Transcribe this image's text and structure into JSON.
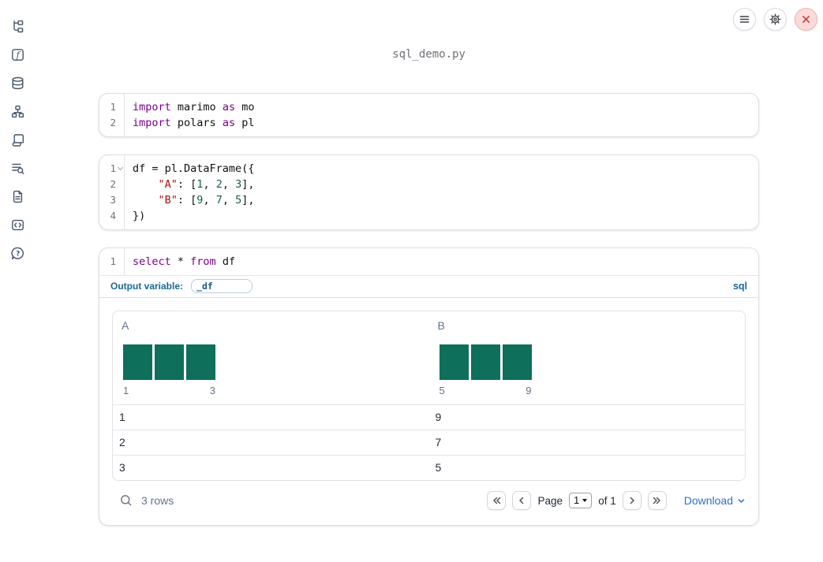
{
  "window": {
    "title": "sql_demo.py"
  },
  "toolbar": {
    "buttons": [
      {
        "name": "menu",
        "icon": "hamburger-menu-icon"
      },
      {
        "name": "settings",
        "icon": "gear-icon"
      },
      {
        "name": "close",
        "icon": "close-x-icon"
      }
    ]
  },
  "sidebar": {
    "items": [
      {
        "name": "file-explorer",
        "icon": "file-tree-icon"
      },
      {
        "name": "functions",
        "icon": "function-icon"
      },
      {
        "name": "datasources",
        "icon": "database-icon"
      },
      {
        "name": "dependency-graph",
        "icon": "hierarchy-icon"
      },
      {
        "name": "scratchpad",
        "icon": "scroll-icon"
      },
      {
        "name": "logs",
        "icon": "list-search-icon"
      },
      {
        "name": "documentation",
        "icon": "document-icon"
      },
      {
        "name": "snippets",
        "icon": "code-box-icon"
      },
      {
        "name": "help",
        "icon": "help-bubble-icon"
      }
    ]
  },
  "cells": [
    {
      "kind": "python",
      "lines": [
        {
          "n": "1",
          "seg": [
            [
              "kw",
              "import"
            ],
            [
              "pl",
              " marimo "
            ],
            [
              "kw",
              "as"
            ],
            [
              "pl",
              " mo"
            ]
          ]
        },
        {
          "n": "2",
          "seg": [
            [
              "kw",
              "import"
            ],
            [
              "pl",
              " polars "
            ],
            [
              "kw",
              "as"
            ],
            [
              "pl",
              " pl"
            ]
          ]
        }
      ]
    },
    {
      "kind": "python",
      "lines": [
        {
          "n": "1",
          "fold": true,
          "seg": [
            [
              "pl",
              "df = pl.DataFrame({"
            ]
          ]
        },
        {
          "n": "2",
          "seg": [
            [
              "pl",
              "    "
            ],
            [
              "str",
              "\"A\""
            ],
            [
              "pl",
              ": ["
            ],
            [
              "num",
              "1"
            ],
            [
              "pl",
              ", "
            ],
            [
              "num",
              "2"
            ],
            [
              "pl",
              ", "
            ],
            [
              "num",
              "3"
            ],
            [
              "pl",
              "],"
            ]
          ]
        },
        {
          "n": "3",
          "seg": [
            [
              "pl",
              "    "
            ],
            [
              "str",
              "\"B\""
            ],
            [
              "pl",
              ": ["
            ],
            [
              "num",
              "9"
            ],
            [
              "pl",
              ", "
            ],
            [
              "num",
              "7"
            ],
            [
              "pl",
              ", "
            ],
            [
              "num",
              "5"
            ],
            [
              "pl",
              "],"
            ]
          ]
        },
        {
          "n": "4",
          "seg": [
            [
              "pl",
              "})"
            ]
          ]
        }
      ]
    },
    {
      "kind": "sql",
      "lines": [
        {
          "n": "1",
          "seg": [
            [
              "kw",
              "select"
            ],
            [
              "pl",
              " * "
            ],
            [
              "kw",
              "from"
            ],
            [
              "pl",
              " df"
            ]
          ]
        }
      ],
      "output_variable_label": "Output variable:",
      "output_variable_value": "_df",
      "language_badge": "sql"
    }
  ],
  "output_table": {
    "columns": [
      {
        "name": "A",
        "hist": {
          "bars": [
            1,
            1,
            1
          ],
          "min": "1",
          "max": "3"
        }
      },
      {
        "name": "B",
        "hist": {
          "bars": [
            1,
            1,
            1
          ],
          "min": "5",
          "max": "9"
        }
      }
    ],
    "rows": [
      [
        "1",
        "9"
      ],
      [
        "2",
        "7"
      ],
      [
        "3",
        "5"
      ]
    ],
    "footer": {
      "row_count": "3 rows",
      "page_label": "Page",
      "page_value": "1",
      "of_label": "of 1",
      "download_label": "Download",
      "icons": [
        "search-icon",
        "chevrons-left-icon",
        "chevron-left-icon",
        "chevron-right-icon",
        "chevrons-right-icon",
        "chevron-down-icon"
      ]
    }
  },
  "colors": {
    "bar_teal": "#0E6F5A",
    "accent_blue": "#176897",
    "link_blue": "#2D6FD2",
    "keyword_purple": "#770088",
    "string_red": "#A41114",
    "number_green": "#116644",
    "close_red": "#C2403A"
  }
}
